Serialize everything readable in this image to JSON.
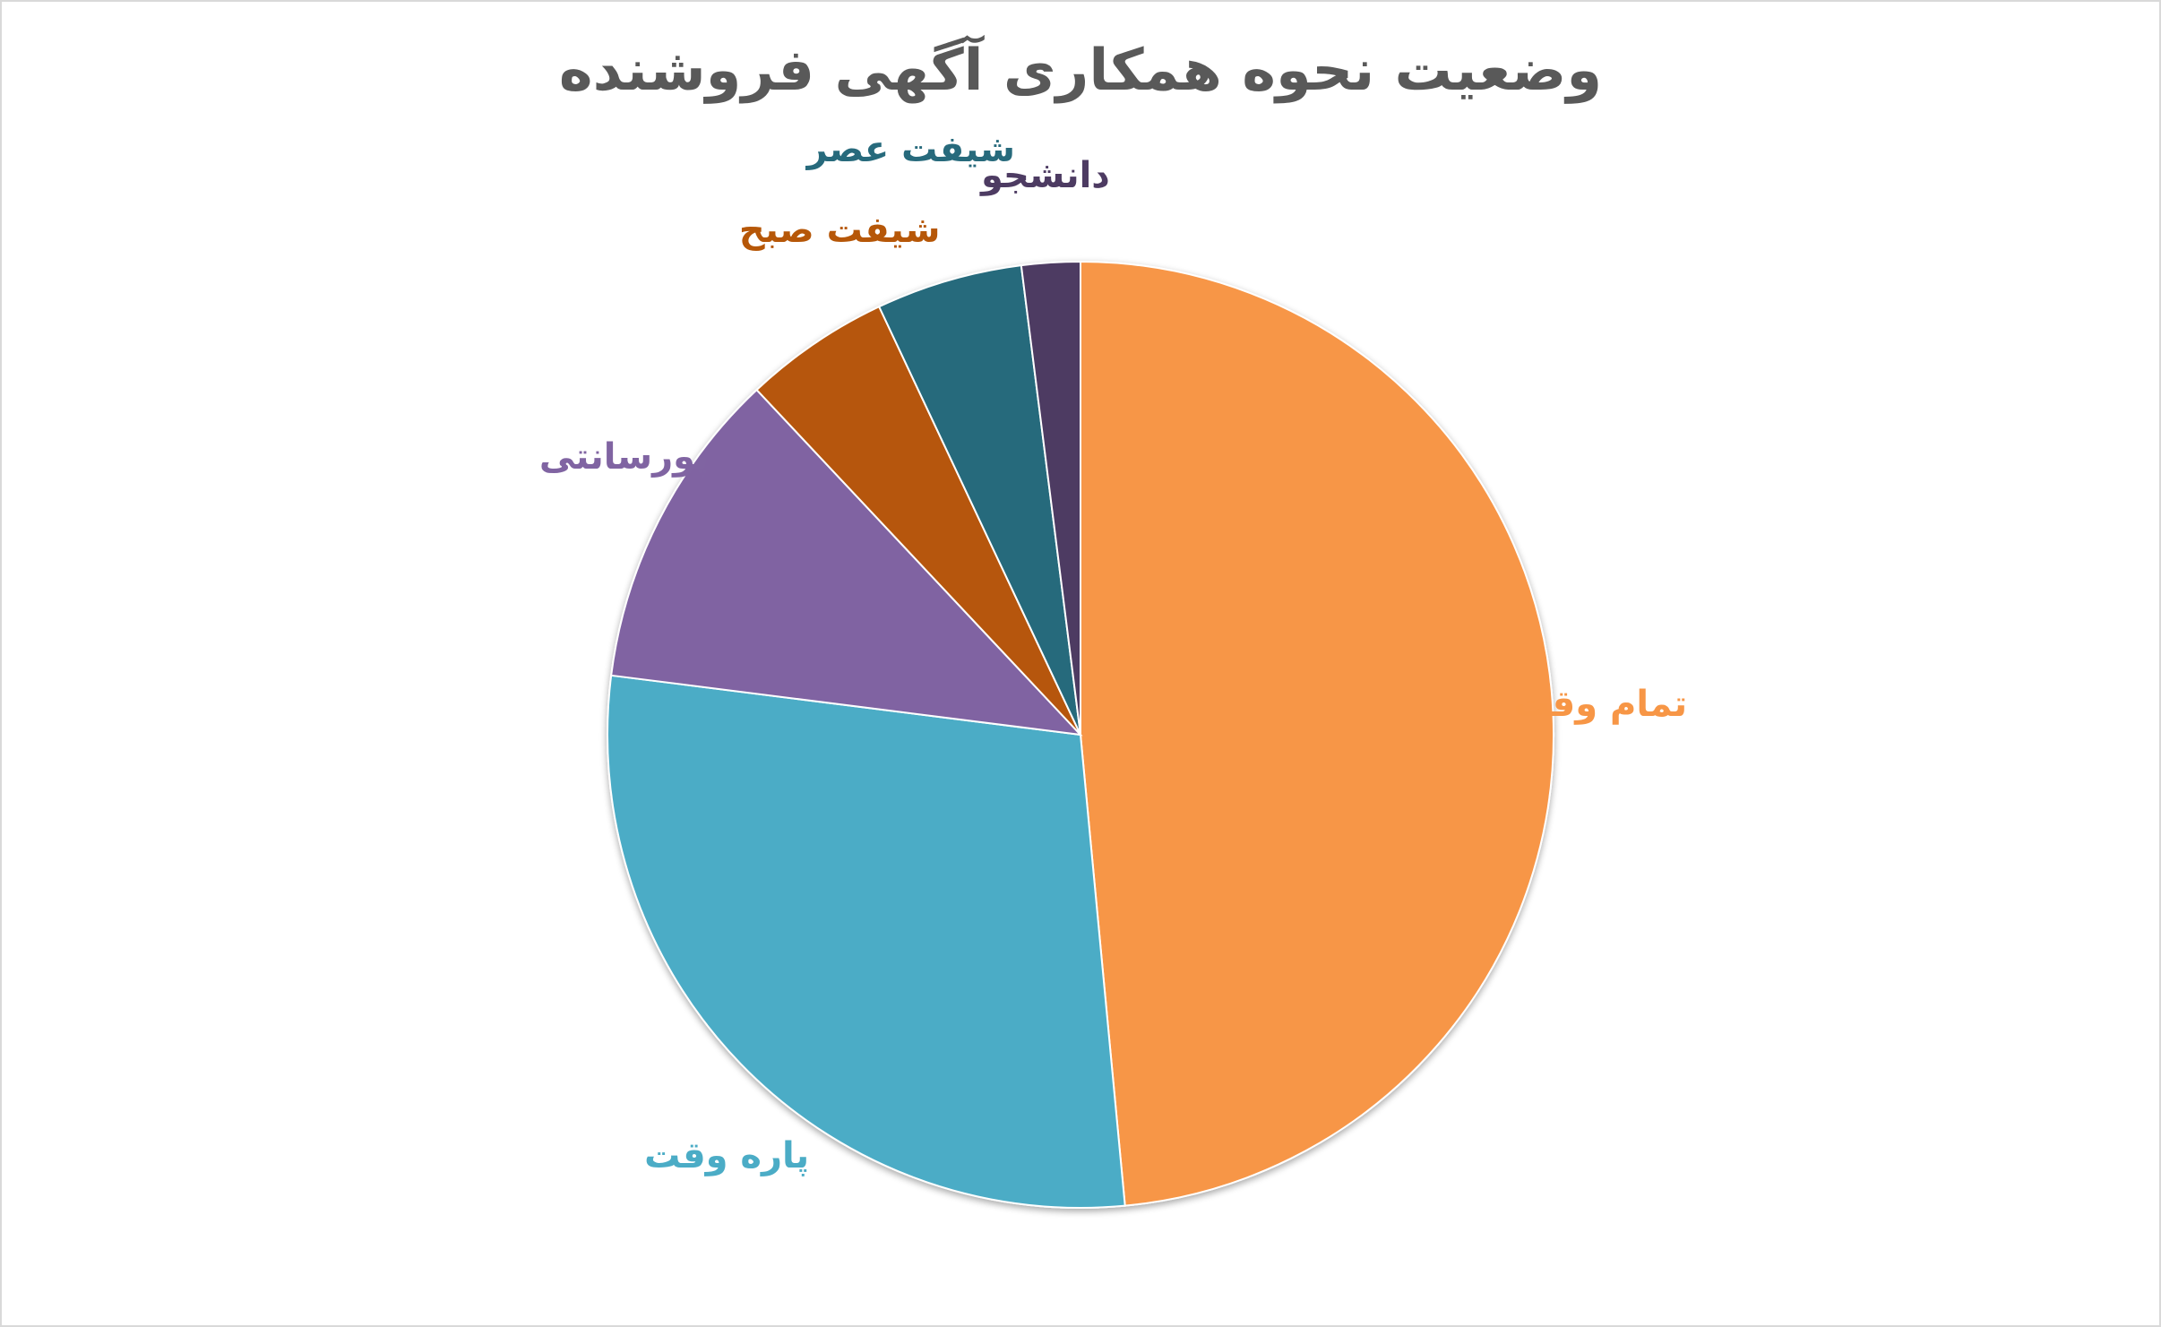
{
  "chart_data": {
    "type": "pie",
    "title": "وضعیت نحوه همکاری آگهی فروشنده",
    "start_angle_deg": 0,
    "direction": "clockwise",
    "slices": [
      {
        "label": "تمام وقت",
        "value": 48.5,
        "color": "#F79646"
      },
      {
        "label": "پاره وقت",
        "value": 28.5,
        "color": "#4BACC6"
      },
      {
        "label": "پورسانتی",
        "value": 11.0,
        "color": "#8064A2"
      },
      {
        "label": "شیفت صبح",
        "value": 5.0,
        "color": "#B65708"
      },
      {
        "label": "شیفت عصر",
        "value": 5.0,
        "color": "#276A7C"
      },
      {
        "label": "دانشجو",
        "value": 2.0,
        "color": "#4D3B62"
      }
    ]
  }
}
